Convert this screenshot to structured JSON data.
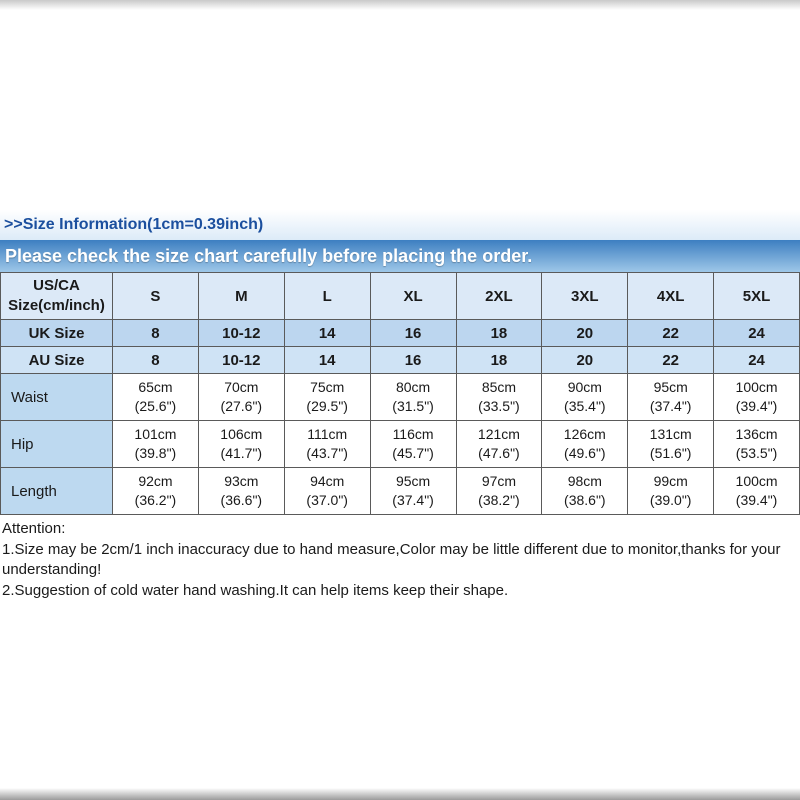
{
  "page": {
    "size_info_title": ">>Size Information(1cm=0.39inch)",
    "banner": "Please check the size chart carefully before placing the order."
  },
  "table": {
    "header": {
      "label": "US/CA\nSize(cm/inch)",
      "sizes": [
        "S",
        "M",
        "L",
        "XL",
        "2XL",
        "3XL",
        "4XL",
        "5XL"
      ]
    },
    "uk": {
      "label": "UK Size",
      "values": [
        "8",
        "10-12",
        "14",
        "16",
        "18",
        "20",
        "22",
        "24"
      ]
    },
    "au": {
      "label": "AU Size",
      "values": [
        "8",
        "10-12",
        "14",
        "16",
        "18",
        "20",
        "22",
        "24"
      ]
    },
    "waist": {
      "label": "Waist",
      "values": [
        "65cm\n(25.6\")",
        "70cm\n(27.6\")",
        "75cm\n(29.5\")",
        "80cm\n(31.5\")",
        "85cm\n(33.5\")",
        "90cm\n(35.4\")",
        "95cm\n(37.4\")",
        "100cm\n(39.4\")"
      ]
    },
    "hip": {
      "label": "Hip",
      "values": [
        "101cm\n(39.8\")",
        "106cm\n(41.7\")",
        "111cm\n(43.7\")",
        "116cm\n(45.7\")",
        "121cm\n(47.6\")",
        "126cm\n(49.6\")",
        "131cm\n(51.6\")",
        "136cm\n(53.5\")"
      ]
    },
    "length": {
      "label": "Length",
      "values": [
        "92cm\n(36.2\")",
        "93cm\n(36.6\")",
        "94cm\n(37.0\")",
        "95cm\n(37.4\")",
        "97cm\n(38.2\")",
        "98cm\n(38.6\")",
        "99cm\n(39.0\")",
        "100cm\n(39.4\")"
      ]
    }
  },
  "attention": {
    "title": "Attention:",
    "line1": "1.Size may be 2cm/1 inch inaccuracy due to hand measure,Color may be little different due to monitor,thanks for your understanding!",
    "line2": "2.Suggestion of cold water hand washing.It can help items keep their shape."
  }
}
